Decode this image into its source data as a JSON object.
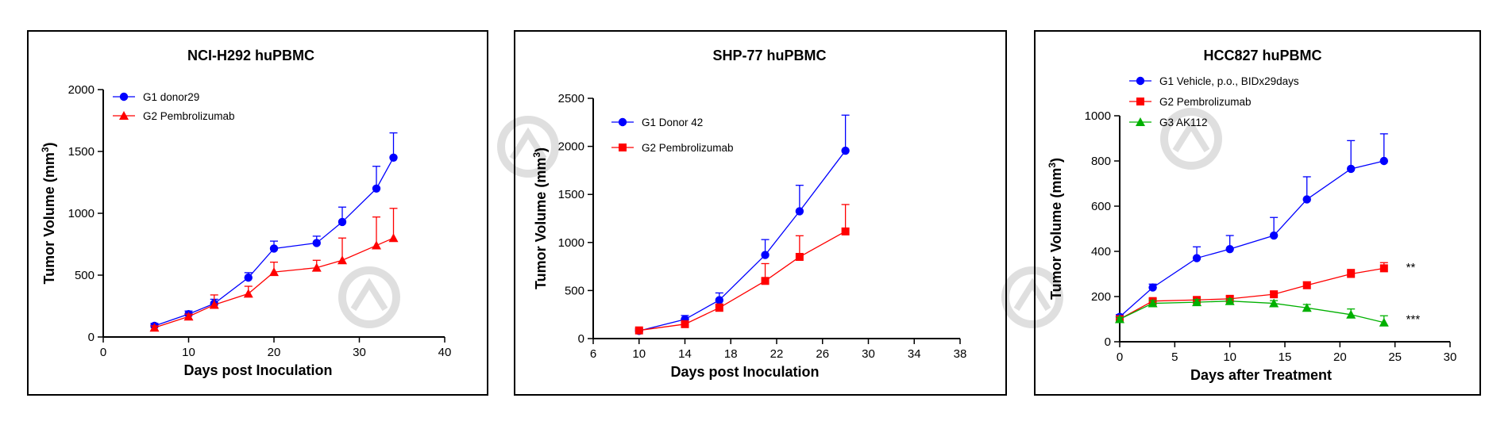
{
  "chart_data": [
    {
      "type": "line",
      "title": "NCI-H292 huPBMC",
      "xlabel": "Days post Inoculation",
      "ylabel": "Tumor Volume (mm",
      "ylabel_sup": "3",
      "ylabel_close": ")",
      "xlim": [
        0,
        40
      ],
      "ylim": [
        0,
        2000
      ],
      "xticks": [
        "0",
        "10",
        "20",
        "30",
        "40"
      ],
      "yticks": [
        "0",
        "500",
        "1000",
        "1500",
        "2000"
      ],
      "legend_position": "top-left",
      "grid": false,
      "series": [
        {
          "name": "G1 donor29",
          "color": "#0000ff",
          "marker": "circle",
          "x": [
            6,
            10,
            13,
            17,
            20,
            25,
            28,
            32,
            34
          ],
          "y": [
            90,
            185,
            270,
            480,
            715,
            760,
            930,
            1200,
            1450
          ],
          "err": [
            20,
            25,
            35,
            40,
            60,
            55,
            120,
            180,
            200
          ]
        },
        {
          "name": "G2 Pembrolizumab",
          "color": "#ff0000",
          "marker": "triangle",
          "x": [
            6,
            10,
            13,
            17,
            20,
            25,
            28,
            32,
            34
          ],
          "y": [
            75,
            165,
            260,
            350,
            525,
            560,
            620,
            740,
            800
          ],
          "err": [
            15,
            20,
            80,
            60,
            80,
            60,
            180,
            230,
            240
          ]
        }
      ]
    },
    {
      "type": "line",
      "title": "SHP-77  huPBMC",
      "xlabel": "Days post Inoculation",
      "ylabel": "Tumor Volume (mm",
      "ylabel_sup": "3",
      "ylabel_close": ")",
      "xlim": [
        6,
        38
      ],
      "ylim": [
        0,
        2500
      ],
      "xticks": [
        "6",
        "10",
        "14",
        "18",
        "22",
        "26",
        "30",
        "34",
        "38"
      ],
      "yticks": [
        "0",
        "500",
        "1000",
        "1500",
        "2000",
        "2500"
      ],
      "legend_position": "top-left",
      "grid": false,
      "series": [
        {
          "name": "G1 Donor 42",
          "color": "#0000ff",
          "marker": "circle",
          "x": [
            10,
            14,
            17,
            21,
            24,
            28
          ],
          "y": [
            80,
            200,
            400,
            870,
            1325,
            1955
          ],
          "err": [
            20,
            40,
            75,
            160,
            270,
            370
          ]
        },
        {
          "name": "G2 Pembrolizumab",
          "color": "#ff0000",
          "marker": "square",
          "x": [
            10,
            14,
            17,
            21,
            24,
            28
          ],
          "y": [
            85,
            150,
            320,
            600,
            850,
            1115
          ],
          "err": [
            20,
            30,
            40,
            180,
            220,
            280
          ]
        }
      ]
    },
    {
      "type": "line",
      "title": "HCC827 huPBMC",
      "xlabel": "Days after Treatment",
      "ylabel": "Tumor Volume (mm",
      "ylabel_sup": "3",
      "ylabel_close": ")",
      "xlim": [
        0,
        30
      ],
      "ylim": [
        0,
        1000
      ],
      "xticks": [
        "0",
        "5",
        "10",
        "15",
        "20",
        "25",
        "30"
      ],
      "yticks": [
        "0",
        "200",
        "400",
        "600",
        "800",
        "1000"
      ],
      "legend_position": "top-left",
      "grid": false,
      "annotations": [
        {
          "text": "**",
          "x": 25,
          "y": 330
        },
        {
          "text": "***",
          "x": 25,
          "y": 100
        }
      ],
      "series": [
        {
          "name": "G1 Vehicle, p.o., BIDx29days",
          "color": "#0000ff",
          "marker": "circle",
          "x": [
            0,
            3,
            7,
            10,
            14,
            17,
            21,
            24
          ],
          "y": [
            110,
            240,
            370,
            410,
            470,
            630,
            765,
            800
          ],
          "err": [
            10,
            15,
            50,
            60,
            80,
            100,
            125,
            120
          ]
        },
        {
          "name": "G2 Pembrolizumab",
          "color": "#ff0000",
          "marker": "square",
          "x": [
            0,
            3,
            7,
            10,
            14,
            17,
            21,
            24
          ],
          "y": [
            100,
            180,
            185,
            190,
            210,
            250,
            300,
            325
          ],
          "err": [
            8,
            10,
            10,
            12,
            12,
            15,
            20,
            25
          ]
        },
        {
          "name": "G3 AK112",
          "color": "#00b000",
          "marker": "triangle",
          "x": [
            0,
            3,
            7,
            10,
            14,
            17,
            21,
            24
          ],
          "y": [
            100,
            170,
            175,
            180,
            170,
            150,
            120,
            85
          ],
          "err": [
            8,
            12,
            12,
            10,
            12,
            15,
            25,
            30
          ]
        }
      ]
    }
  ]
}
